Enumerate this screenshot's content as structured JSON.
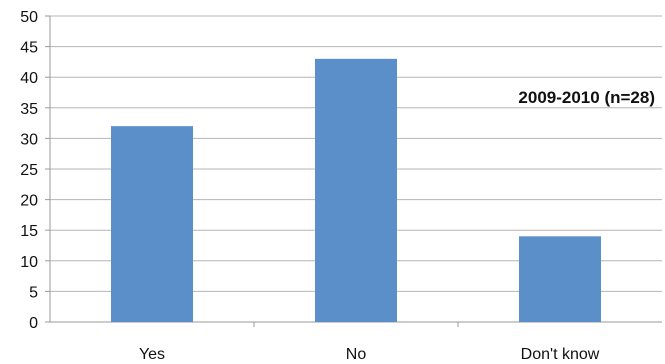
{
  "chart_data": {
    "type": "bar",
    "categories": [
      "Yes",
      "No",
      "Don't know"
    ],
    "values": [
      32,
      43,
      14
    ],
    "title": "",
    "xlabel": "",
    "ylabel": "",
    "ylim": [
      0,
      50
    ],
    "yticks": [
      0,
      5,
      10,
      15,
      20,
      25,
      30,
      35,
      40,
      45,
      50
    ],
    "grid": true,
    "legend": "none",
    "annotations": [
      {
        "text": "2009-2010 (n=28)",
        "placement": "upper-right"
      }
    ],
    "colors": {
      "bar": "#5b8fc9",
      "grid": "#b5b5b5",
      "axis": "#9a9a9a",
      "text": "#111111"
    }
  }
}
